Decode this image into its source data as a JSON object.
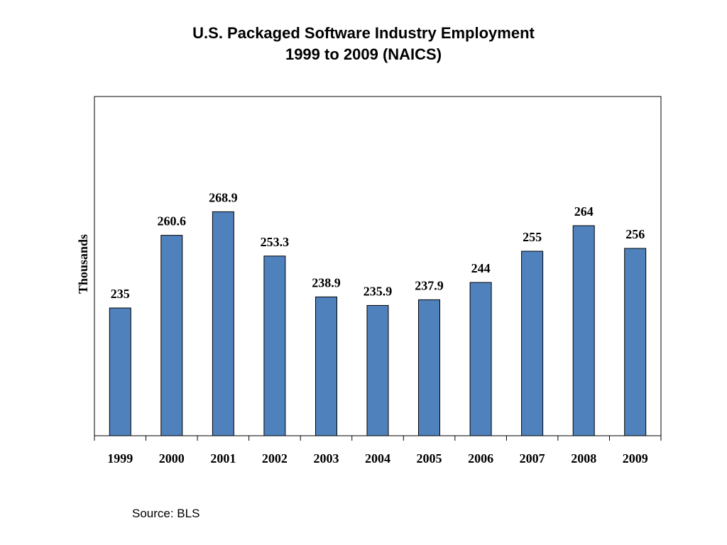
{
  "chart_data": {
    "type": "bar",
    "title": "U.S. Packaged Software Industry Employment",
    "subtitle": "1999 to 2009 (NAICS)",
    "xlabel": "",
    "ylabel": "Thousands",
    "categories": [
      "1999",
      "2000",
      "2001",
      "2002",
      "2003",
      "2004",
      "2005",
      "2006",
      "2007",
      "2008",
      "2009"
    ],
    "values": [
      235,
      260.6,
      268.9,
      253.3,
      238.9,
      235.9,
      237.9,
      244,
      255,
      264,
      256
    ],
    "data_labels": [
      "235",
      "260.6",
      "268.9",
      "253.3",
      "238.9",
      "235.9",
      "237.9",
      "244",
      "255",
      "264",
      "256"
    ],
    "ylim": [
      190,
      280
    ],
    "grid": false,
    "legend": "none",
    "bar_color": "#4f81bd",
    "bar_edge_color": "#000000"
  },
  "footer": {
    "source": "Source: BLS"
  }
}
